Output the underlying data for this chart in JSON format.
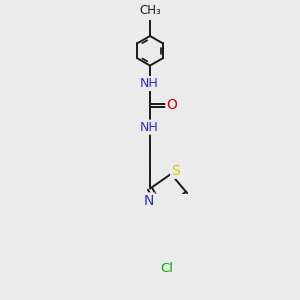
{
  "background_color": "#ebebeb",
  "bond_color": "#1a1a1a",
  "bond_width": 1.4,
  "atom_colors": {
    "N": "#2b2bcc",
    "O": "#cc0000",
    "S": "#cccc00",
    "Cl": "#00aa00",
    "C": "#1a1a1a"
  },
  "font_size": 9,
  "fig_size": [
    3.0,
    3.0
  ],
  "dpi": 100,
  "xlim": [
    -1.2,
    1.8
  ],
  "ylim": [
    -4.8,
    2.0
  ]
}
